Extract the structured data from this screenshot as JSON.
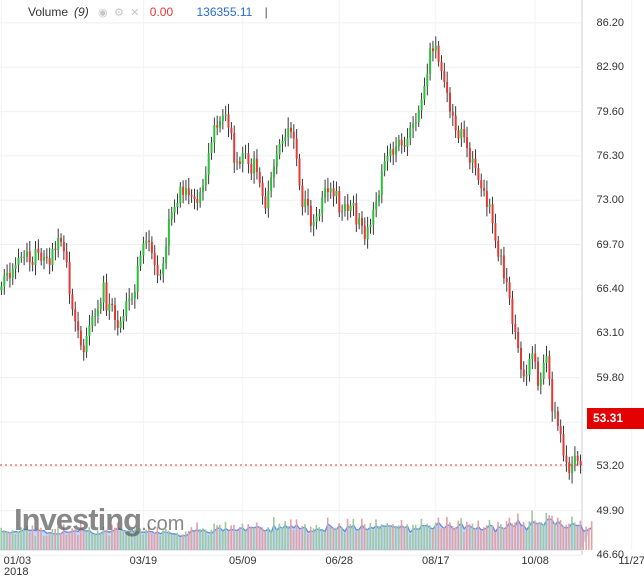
{
  "legend": {
    "name": "Volume",
    "period": "(9)",
    "value": "0.00",
    "volume_value": "136355.11",
    "cursor": "|",
    "icons": [
      "eye-icon",
      "gear-icon",
      "close-icon"
    ]
  },
  "brand": {
    "name": "Investing",
    "suffix": ".com"
  },
  "last_price": "53.31",
  "colors": {
    "up": "#2bbf3b",
    "down": "#e53935",
    "wick": "#222222",
    "volume_area": "#5b8ff0",
    "price_line": "#e53935",
    "tag": "#e30000"
  },
  "chart_data": {
    "type": "candlestick",
    "xlabel": "",
    "ylabel": "",
    "year_label": "2018",
    "ylim": [
      44.9,
      87.9
    ],
    "y_ticks": [
      "86.20",
      "82.90",
      "79.60",
      "76.30",
      "73.00",
      "69.70",
      "66.40",
      "63.10",
      "59.80",
      "56.50",
      "53.20",
      "49.90",
      "46.60"
    ],
    "x_ticks": [
      "01/03",
      "03/19",
      "05/09",
      "06/28",
      "08/17",
      "10/08",
      "11/27"
    ],
    "x_tick_index": [
      0,
      50,
      85,
      119,
      153,
      188,
      222
    ],
    "last_price": 53.31,
    "closes": [
      66.6,
      67.4,
      67.6,
      67.2,
      67.9,
      68.2,
      68.7,
      68.8,
      68.8,
      69.2,
      68.4,
      68.2,
      69.4,
      69.1,
      68.5,
      68.8,
      68.7,
      68.2,
      69.4,
      69.3,
      70.2,
      69.9,
      69.2,
      68.4,
      66.0,
      64.9,
      64.0,
      63.3,
      62.2,
      61.7,
      62.9,
      63.7,
      64.4,
      64.4,
      64.9,
      65.4,
      66.9,
      64.8,
      65.3,
      65.2,
      64.1,
      63.5,
      64.0,
      64.4,
      65.5,
      65.7,
      65.7,
      66.2,
      68.1,
      68.9,
      69.8,
      70.0,
      69.9,
      69.1,
      68.2,
      67.4,
      67.5,
      68.3,
      69.6,
      71.6,
      72.1,
      72.5,
      72.8,
      74.0,
      73.4,
      73.9,
      73.4,
      73.3,
      73.1,
      72.8,
      73.6,
      74.1,
      74.9,
      76.5,
      77.3,
      78.6,
      78.4,
      78.9,
      79.3,
      79.4,
      78.4,
      78.0,
      75.8,
      75.9,
      75.7,
      76.5,
      76.5,
      75.7,
      75.0,
      76.1,
      75.1,
      74.3,
      73.3,
      72.4,
      73.7,
      74.7,
      75.5,
      76.4,
      77.2,
      77.4,
      77.7,
      78.4,
      78.1,
      77.6,
      76.1,
      74.1,
      72.5,
      73.1,
      72.6,
      71.1,
      71.4,
      71.8,
      72.0,
      73.2,
      73.9,
      73.6,
      73.9,
      73.3,
      73.7,
      72.1,
      72.2,
      72.7,
      72.2,
      72.6,
      72.8,
      71.2,
      71.7,
      71.1,
      70.1,
      71.0,
      71.2,
      72.3,
      72.9,
      73.4,
      75.2,
      75.9,
      76.3,
      76.8,
      76.4,
      77.0,
      77.5,
      77.1,
      77.0,
      77.6,
      78.4,
      78.7,
      78.8,
      79.7,
      80.5,
      81.5,
      82.4,
      84.3,
      84.1,
      84.5,
      83.3,
      82.6,
      81.8,
      81.0,
      79.6,
      79.3,
      78.2,
      77.6,
      78.3,
      77.7,
      76.9,
      75.8,
      76.1,
      75.4,
      74.5,
      73.9,
      73.7,
      72.5,
      72.7,
      71.3,
      70.0,
      68.8,
      68.9,
      67.2,
      66.9,
      65.7,
      63.8,
      63.2,
      62.0,
      60.4,
      59.9,
      60.0,
      61.2,
      61.6,
      61.0,
      59.2,
      59.7,
      60.9,
      61.4,
      59.7,
      57.3,
      57.3,
      56.2,
      55.6,
      54.0,
      53.5,
      52.7,
      53.4,
      54.0,
      53.6,
      53.3
    ],
    "volumes": [
      0.37,
      0.33,
      0.3,
      0.3,
      0.33,
      0.27,
      0.31,
      0.38,
      0.36,
      0.4,
      0.29,
      0.41,
      0.23,
      0.34,
      0.37,
      0.23,
      0.24,
      0.26,
      0.35,
      0.35,
      0.39,
      0.28,
      0.43,
      0.26,
      0.3,
      0.36,
      0.34,
      0.25,
      0.48,
      0.33,
      0.3,
      0.38,
      0.26,
      0.28,
      0.33,
      0.28,
      0.39,
      0.34,
      0.24,
      0.42,
      0.37,
      0.46,
      0.32,
      0.33,
      0.32,
      0.35,
      0.33,
      0.34,
      0.32,
      0.36,
      0.26,
      0.34,
      0.41,
      0.28,
      0.29,
      0.39,
      0.24,
      0.33,
      0.35,
      0.32,
      0.26,
      0.26,
      0.29,
      0.21,
      0.26,
      0.31,
      0.32,
      0.38,
      0.31,
      0.46,
      0.35,
      0.36,
      0.34,
      0.25,
      0.34,
      0.44,
      0.41,
      0.42,
      0.31,
      0.47,
      0.32,
      0.41,
      0.42,
      0.3,
      0.38,
      0.44,
      0.32,
      0.43,
      0.39,
      0.37,
      0.46,
      0.38,
      0.38,
      0.32,
      0.38,
      0.32,
      0.55,
      0.34,
      0.44,
      0.38,
      0.48,
      0.4,
      0.51,
      0.33,
      0.51,
      0.33,
      0.4,
      0.43,
      0.27,
      0.39,
      0.36,
      0.42,
      0.38,
      0.33,
      0.31,
      0.54,
      0.39,
      0.37,
      0.37,
      0.45,
      0.38,
      0.28,
      0.52,
      0.43,
      0.52,
      0.31,
      0.34,
      0.52,
      0.43,
      0.34,
      0.45,
      0.34,
      0.51,
      0.4,
      0.43,
      0.39,
      0.45,
      0.41,
      0.43,
      0.39,
      0.41,
      0.5,
      0.39,
      0.43,
      0.26,
      0.42,
      0.42,
      0.37,
      0.52,
      0.41,
      0.44,
      0.41,
      0.35,
      0.46,
      0.54,
      0.36,
      0.38,
      0.55,
      0.46,
      0.4,
      0.38,
      0.49,
      0.53,
      0.3,
      0.47,
      0.43,
      0.44,
      0.35,
      0.49,
      0.33,
      0.38,
      0.41,
      0.5,
      0.41,
      0.3,
      0.47,
      0.43,
      0.37,
      0.48,
      0.54,
      0.44,
      0.46,
      0.61,
      0.4,
      0.47,
      0.32,
      0.48,
      0.66,
      0.49,
      0.45,
      0.46,
      0.43,
      0.62,
      0.58,
      0.57,
      0.45,
      0.54,
      0.5,
      0.39,
      0.42,
      0.44,
      0.56,
      0.46,
      0.4,
      0.49,
      0.31,
      0.39,
      0.37,
      0.48
    ],
    "volume_ma": [
      0.34,
      0.34,
      0.33,
      0.32,
      0.33,
      0.34,
      0.33,
      0.35,
      0.37,
      0.38,
      0.36,
      0.37,
      0.36,
      0.37,
      0.35,
      0.36,
      0.31,
      0.32,
      0.31,
      0.29,
      0.3,
      0.3,
      0.35,
      0.33,
      0.33,
      0.34,
      0.36,
      0.34,
      0.4,
      0.36,
      0.35,
      0.36,
      0.31,
      0.29,
      0.29,
      0.31,
      0.34,
      0.35,
      0.33,
      0.35,
      0.37,
      0.41,
      0.38,
      0.36,
      0.35,
      0.33,
      0.37,
      0.31,
      0.33,
      0.33,
      0.33,
      0.33,
      0.34,
      0.34,
      0.31,
      0.33,
      0.3,
      0.33,
      0.33,
      0.32,
      0.3,
      0.3,
      0.28,
      0.25,
      0.27,
      0.26,
      0.3,
      0.36,
      0.35,
      0.38,
      0.33,
      0.38,
      0.34,
      0.32,
      0.31,
      0.35,
      0.4,
      0.41,
      0.35,
      0.4,
      0.36,
      0.38,
      0.37,
      0.36,
      0.4,
      0.41,
      0.35,
      0.41,
      0.42,
      0.41,
      0.43,
      0.42,
      0.37,
      0.35,
      0.39,
      0.32,
      0.46,
      0.36,
      0.43,
      0.4,
      0.46,
      0.39,
      0.45,
      0.41,
      0.47,
      0.39,
      0.41,
      0.42,
      0.33,
      0.35,
      0.34,
      0.39,
      0.37,
      0.37,
      0.34,
      0.48,
      0.44,
      0.39,
      0.38,
      0.45,
      0.4,
      0.34,
      0.44,
      0.41,
      0.46,
      0.37,
      0.38,
      0.46,
      0.39,
      0.38,
      0.42,
      0.4,
      0.45,
      0.39,
      0.45,
      0.44,
      0.44,
      0.45,
      0.42,
      0.43,
      0.4,
      0.45,
      0.41,
      0.44,
      0.33,
      0.38,
      0.4,
      0.37,
      0.45,
      0.45,
      0.45,
      0.41,
      0.39,
      0.45,
      0.51,
      0.44,
      0.4,
      0.46,
      0.46,
      0.39,
      0.39,
      0.45,
      0.49,
      0.39,
      0.45,
      0.44,
      0.41,
      0.38,
      0.43,
      0.37,
      0.38,
      0.41,
      0.46,
      0.44,
      0.33,
      0.42,
      0.42,
      0.39,
      0.42,
      0.51,
      0.44,
      0.44,
      0.55,
      0.46,
      0.45,
      0.37,
      0.45,
      0.53,
      0.49,
      0.49,
      0.5,
      0.45,
      0.55,
      0.58,
      0.55,
      0.46,
      0.53,
      0.48,
      0.42,
      0.41,
      0.42,
      0.5,
      0.46,
      0.45,
      0.46,
      0.35,
      0.36,
      0.38,
      0.42
    ]
  }
}
